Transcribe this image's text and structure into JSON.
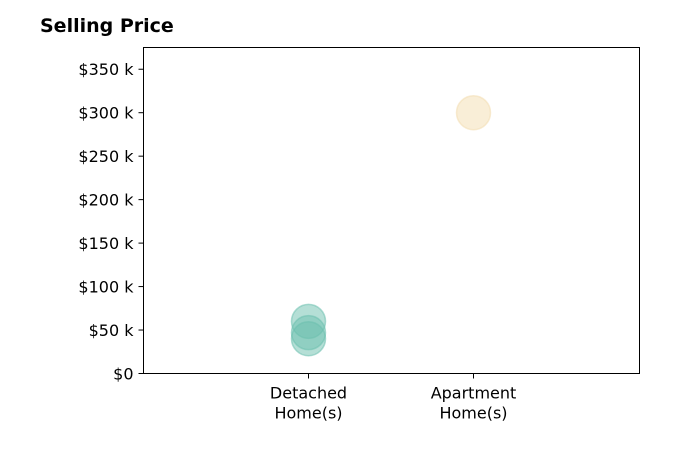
{
  "chart_data": {
    "type": "scatter",
    "title": "Selling Price",
    "xlabel": "",
    "ylabel": "",
    "categories": [
      [
        "Detached",
        "Home(s)"
      ],
      [
        "Apartment",
        "Home(s)"
      ]
    ],
    "ylim": [
      0,
      375000
    ],
    "yticks": [
      0,
      50000,
      100000,
      150000,
      200000,
      250000,
      300000,
      350000
    ],
    "ytick_labels": [
      "$0",
      "$50 k",
      "$100 k",
      "$150 k",
      "$200 k",
      "$250 k",
      "$300 k",
      "$350 k"
    ],
    "grid": false,
    "points": [
      {
        "category": 0,
        "y": 60000,
        "color": "#6bbfae"
      },
      {
        "category": 0,
        "y": 47000,
        "color": "#6bbfae"
      },
      {
        "category": 0,
        "y": 40000,
        "color": "#6bbfae"
      },
      {
        "category": 1,
        "y": 300000,
        "color": "#f3ddb0"
      }
    ]
  }
}
